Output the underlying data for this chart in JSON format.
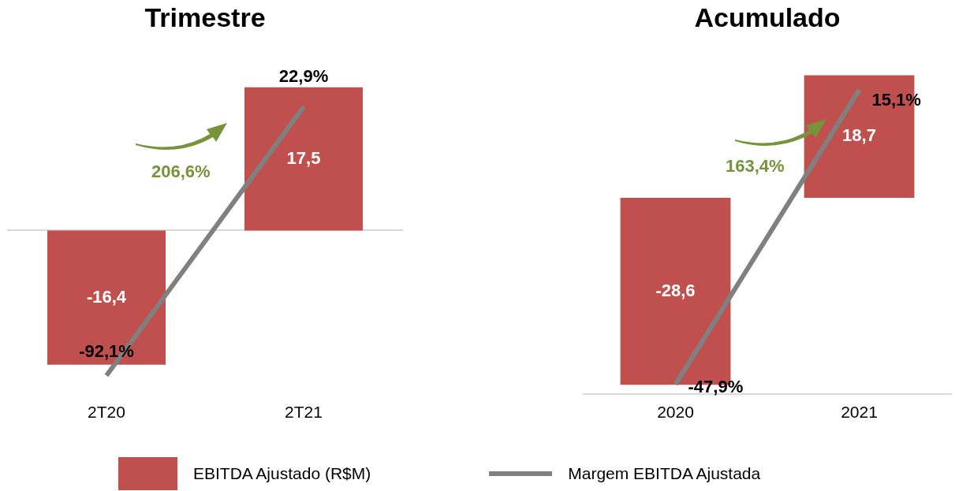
{
  "chart_data": [
    {
      "type": "bar",
      "title": "Trimestre",
      "categories": [
        "2T20",
        "2T21"
      ],
      "legend": "bottom",
      "annotations": [
        "206,6%"
      ],
      "series": [
        {
          "name": "EBITDA Ajustado (R$M)",
          "color": "#c0504d",
          "values": [
            -16.4,
            17.5
          ],
          "value_labels": [
            "-16,4",
            "17,5"
          ]
        },
        {
          "name": "Margem EBITDA Ajustada",
          "type": "line",
          "axis": "y2",
          "color": "#808080",
          "values": [
            -92.1,
            22.9
          ],
          "value_labels": [
            "-92,1%",
            "22,9%"
          ]
        }
      ]
    },
    {
      "type": "bar",
      "title": "Acumulado",
      "categories": [
        "2020",
        "2021"
      ],
      "annotations": [
        "163,4%"
      ],
      "series": [
        {
          "color": "#c0504d",
          "values": [
            -28.6,
            18.7
          ],
          "value_labels": [
            "-28,6",
            "18,7"
          ]
        },
        {
          "type": "line",
          "axis": "y2",
          "color": "#808080",
          "values": [
            -47.9,
            15.1
          ],
          "value_labels": [
            "-47,9%",
            "15,1%"
          ]
        }
      ]
    }
  ]
}
